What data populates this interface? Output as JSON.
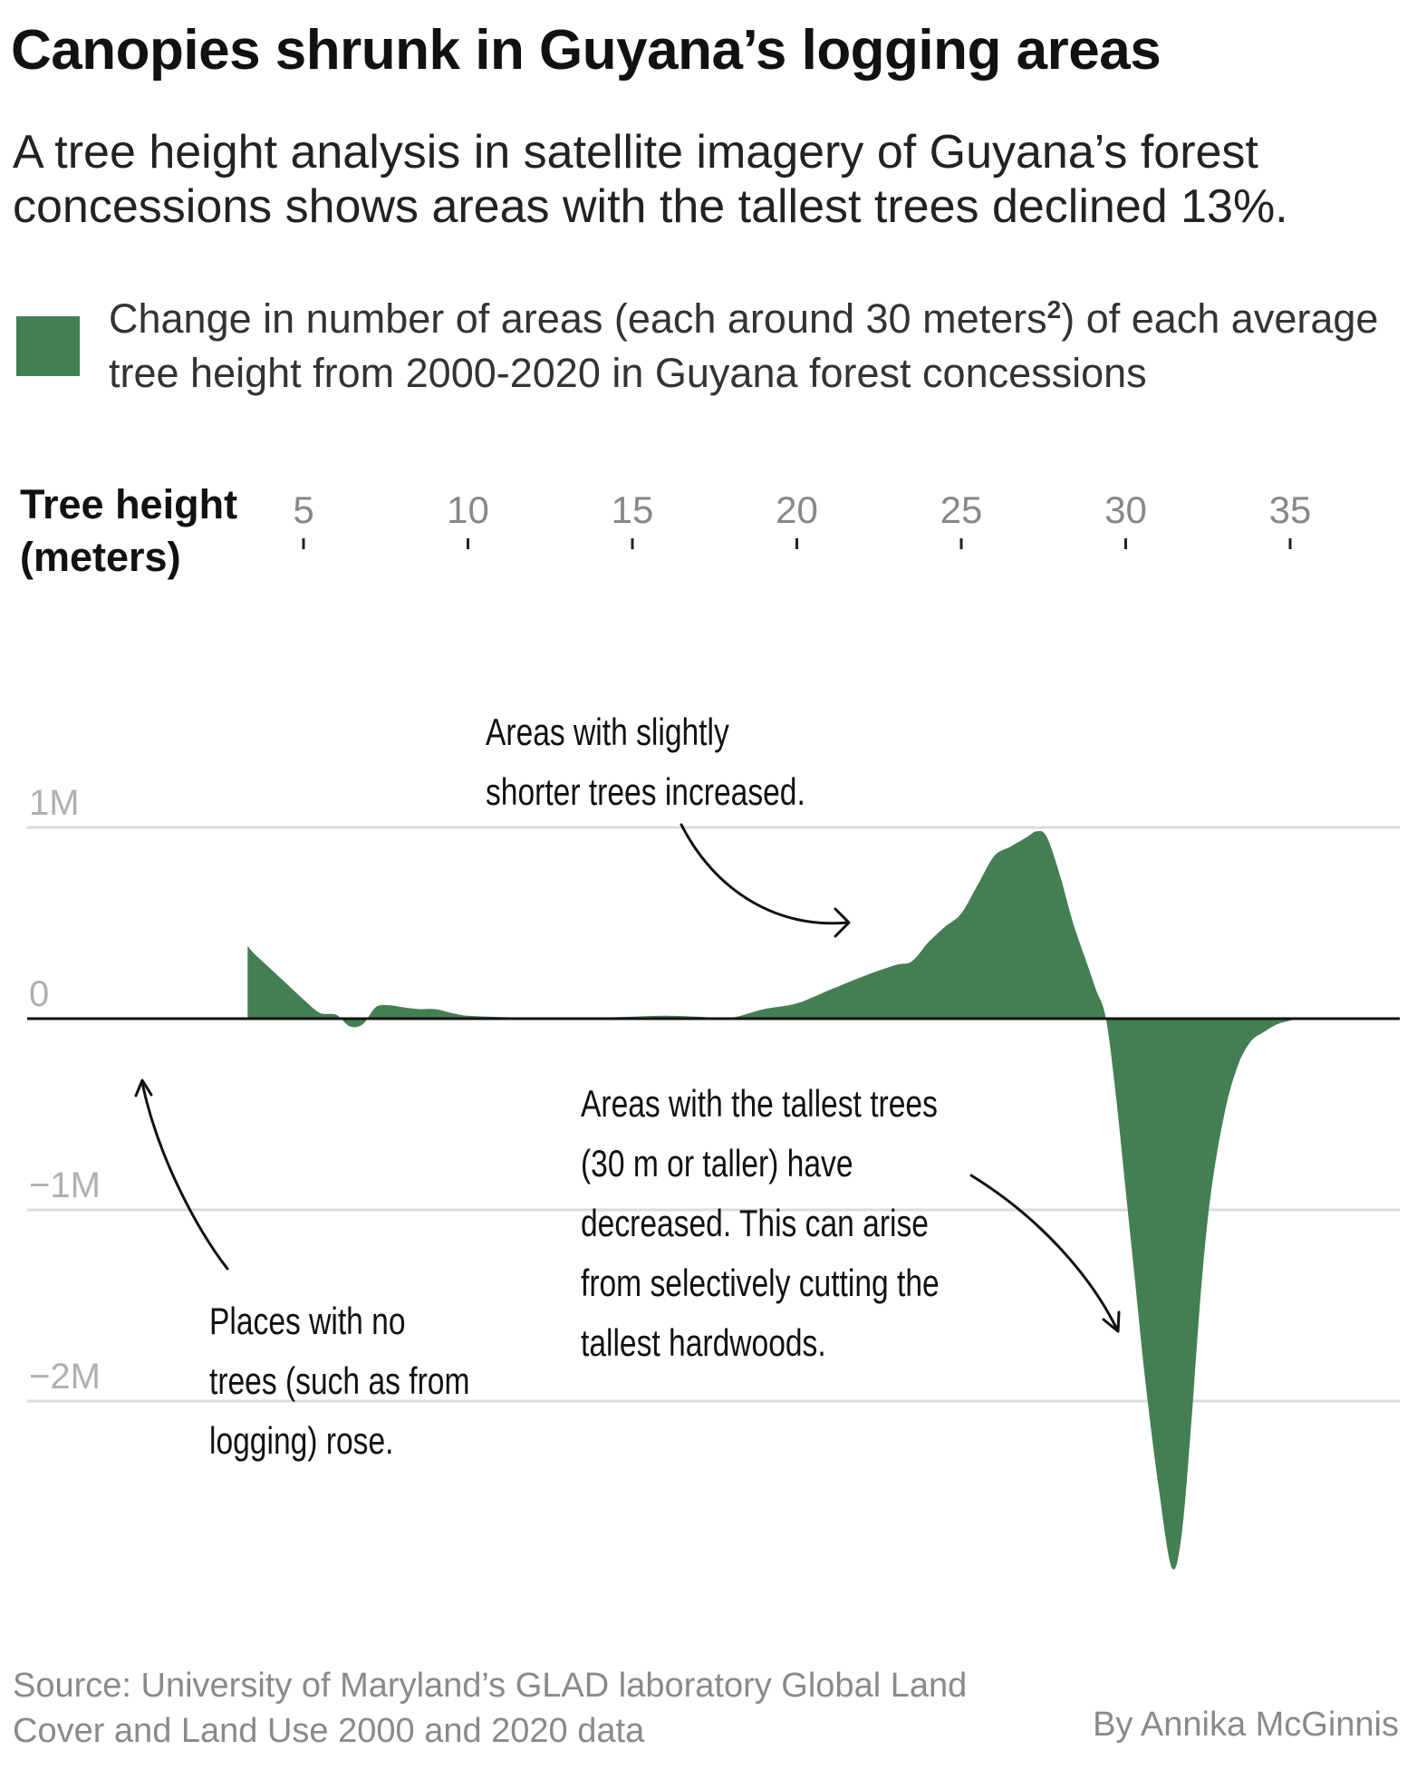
{
  "header": {
    "title": "Canopies shrunk in Guyana’s logging areas",
    "subtitle": "A tree height analysis in satellite imagery of Guyana’s forest concessions shows areas with the tallest trees declined 13%."
  },
  "legend": {
    "swatch_color": "#437f52",
    "text_before": "Change in number of areas (each around 30 meters",
    "superscript": "2",
    "text_after": ") of each average tree height from 2000-2020 in Guyana forest concessions"
  },
  "chart_data": {
    "type": "area",
    "title": "",
    "xlabel_lines": [
      "Tree height",
      "(meters)"
    ],
    "ylabel": "",
    "x_ticks": [
      5,
      10,
      15,
      20,
      25,
      30,
      35
    ],
    "x_tick_labels": [
      "5",
      "10",
      "15",
      "20",
      "25",
      "30",
      "35"
    ],
    "x_axis_position": "top",
    "y_ticks": [
      1000000,
      0,
      -1000000,
      -2000000
    ],
    "y_tick_labels": [
      "1M",
      "0",
      "−1M",
      "−2M"
    ],
    "xlim": [
      2.2,
      38
    ],
    "ylim": [
      -2900000,
      1000000
    ],
    "grid": true,
    "fill_color": "#437f52",
    "series": [
      {
        "x": [
          3.3,
          3.5,
          4.0,
          4.5,
          5.0,
          5.5,
          6.0,
          6.4,
          6.8,
          7.2,
          7.6,
          8.0,
          8.5,
          9.0,
          9.5,
          10.0,
          11.0,
          12.0,
          13.0,
          14.0,
          15.0,
          16.0,
          17.0,
          18.0,
          19.0,
          20.0,
          21.0,
          22.0,
          23.0,
          23.5,
          24.0,
          24.5,
          25.0,
          25.5,
          26.0,
          26.5,
          27.0,
          27.3,
          27.6,
          28.0,
          28.4,
          28.8,
          29.1,
          29.4,
          29.7,
          30.0,
          30.3,
          30.6,
          31.0,
          31.4,
          31.7,
          32.0,
          32.3,
          32.6,
          33.0,
          33.4,
          33.8,
          34.2,
          34.6,
          35.0,
          35.3
        ],
        "y": [
          380000,
          340000,
          260000,
          180000,
          100000,
          30000,
          20000,
          -40000,
          -30000,
          60000,
          70000,
          60000,
          50000,
          50000,
          30000,
          15000,
          8000,
          4000,
          3000,
          5000,
          10000,
          15000,
          10000,
          5000,
          50000,
          80000,
          150000,
          220000,
          280000,
          300000,
          400000,
          480000,
          550000,
          700000,
          850000,
          900000,
          950000,
          980000,
          950000,
          750000,
          500000,
          300000,
          150000,
          0,
          -400000,
          -900000,
          -1400000,
          -1900000,
          -2450000,
          -2870000,
          -2700000,
          -2100000,
          -1400000,
          -900000,
          -500000,
          -250000,
          -120000,
          -70000,
          -30000,
          -10000,
          0
        ]
      }
    ],
    "annotations": [
      {
        "name": "shorter-trees",
        "lines": [
          "Areas with slightly",
          "shorter trees increased."
        ]
      },
      {
        "name": "tallest-trees",
        "lines": [
          "Areas with the tallest trees",
          "(30 m or taller) have",
          "decreased. This can arise",
          "from selectively cutting the",
          "tallest hardwoods."
        ]
      },
      {
        "name": "no-trees",
        "lines": [
          "Places with no",
          "trees (such as from",
          "logging) rose."
        ]
      }
    ]
  },
  "footer": {
    "source": "Source: University of Maryland’s GLAD laboratory Global Land Cover and Land Use 2000 and 2020 data",
    "byline": "By Annika McGinnis"
  }
}
